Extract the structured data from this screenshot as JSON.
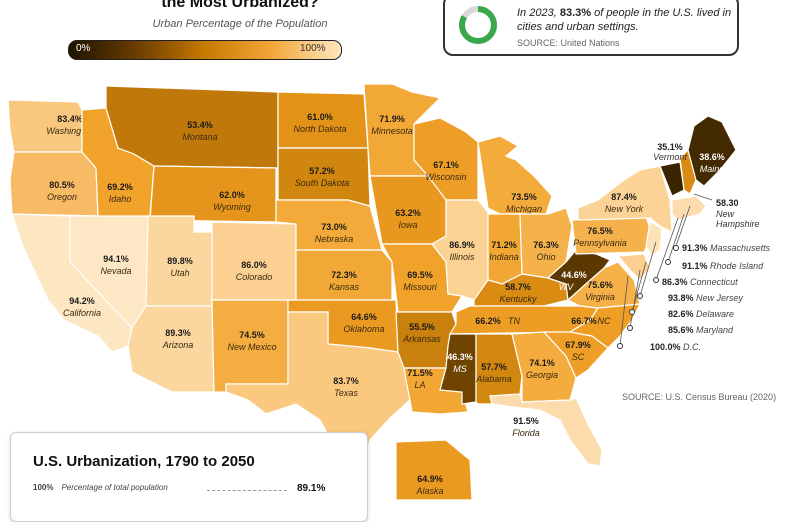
{
  "header": {
    "title": "the Most Urbanized?",
    "subtitle": "Urban Percentage of the Population",
    "legend_min": "0%",
    "legend_max": "100%"
  },
  "info": {
    "text_pre": "In 2023, ",
    "highlight": "83.3%",
    "text_post": " of people in the U.S. lived in cities and urban settings.",
    "source": "SOURCE: United Nations",
    "ring_color": "#3aa74a"
  },
  "states": [
    {
      "name": "Washington",
      "value": "83.4%",
      "fill": "#fac77e",
      "dark": false
    },
    {
      "name": "Oregon",
      "value": "80.5%",
      "fill": "#f7bb65",
      "dark": false
    },
    {
      "name": "California",
      "value": "94.2%",
      "fill": "#fde6c2",
      "dark": false
    },
    {
      "name": "Nevada",
      "value": "94.1%",
      "fill": "#fde7c4",
      "dark": false
    },
    {
      "name": "Idaho",
      "value": "69.2%",
      "fill": "#f0a22a",
      "dark": false
    },
    {
      "name": "Montana",
      "value": "53.4%",
      "fill": "#c0780a",
      "dark": false
    },
    {
      "name": "Wyoming",
      "value": "62.0%",
      "fill": "#e6951c",
      "dark": false
    },
    {
      "name": "Utah",
      "value": "89.8%",
      "fill": "#fbd7a0",
      "dark": false
    },
    {
      "name": "Colorado",
      "value": "86.0%",
      "fill": "#fbd092",
      "dark": false
    },
    {
      "name": "Arizona",
      "value": "89.3%",
      "fill": "#fbd69e",
      "dark": false
    },
    {
      "name": "New Mexico",
      "value": "74.5%",
      "fill": "#f4ad40",
      "dark": false
    },
    {
      "name": "North Dakota",
      "value": "61.0%",
      "fill": "#e39218",
      "dark": false
    },
    {
      "name": "South Dakota",
      "value": "57.2%",
      "fill": "#d1860f",
      "dark": false
    },
    {
      "name": "Nebraska",
      "value": "73.0%",
      "fill": "#f3aa3a",
      "dark": false
    },
    {
      "name": "Kansas",
      "value": "72.3%",
      "fill": "#f2a837",
      "dark": false
    },
    {
      "name": "Oklahoma",
      "value": "64.6%",
      "fill": "#ea9a20",
      "dark": false
    },
    {
      "name": "Texas",
      "value": "83.7%",
      "fill": "#fac97f",
      "dark": false
    },
    {
      "name": "Minnesota",
      "value": "71.9%",
      "fill": "#f2a836",
      "dark": false
    },
    {
      "name": "Iowa",
      "value": "63.2%",
      "fill": "#e8981e",
      "dark": false
    },
    {
      "name": "Missouri",
      "value": "69.5%",
      "fill": "#f0a22a",
      "dark": false
    },
    {
      "name": "Arkansas",
      "value": "55.5%",
      "fill": "#c9800d",
      "dark": false
    },
    {
      "name": "Louisiana",
      "value": "71.5%",
      "fill": "#f2a735",
      "dark": false,
      "abbr": "LA"
    },
    {
      "name": "Wisconsin",
      "value": "67.1%",
      "fill": "#ee9e26",
      "dark": false
    },
    {
      "name": "Illinois",
      "value": "86.9%",
      "fill": "#fbd294",
      "dark": false
    },
    {
      "name": "Michigan",
      "value": "73.5%",
      "fill": "#f3ab3c",
      "dark": false
    },
    {
      "name": "Indiana",
      "value": "71.2%",
      "fill": "#f2a734",
      "dark": false
    },
    {
      "name": "Ohio",
      "value": "76.3%",
      "fill": "#f5b14a",
      "dark": false
    },
    {
      "name": "Kentucky",
      "value": "58.7%",
      "fill": "#d98b12",
      "dark": false
    },
    {
      "name": "Tennessee",
      "value": "66.2%",
      "fill": "#ed9c24",
      "dark": false,
      "abbr": "TN"
    },
    {
      "name": "Mississippi",
      "value": "46.3%",
      "fill": "#6e4400",
      "dark": true,
      "abbr": "MS"
    },
    {
      "name": "Alabama",
      "value": "57.7%",
      "fill": "#d2870f",
      "dark": false
    },
    {
      "name": "Georgia",
      "value": "74.1%",
      "fill": "#f4ac3e",
      "dark": false
    },
    {
      "name": "Florida",
      "value": "91.5%",
      "fill": "#fcdcac",
      "dark": false
    },
    {
      "name": "South Carolina",
      "value": "67.9%",
      "fill": "#ef9f28",
      "dark": false,
      "abbr": "SC"
    },
    {
      "name": "North Carolina",
      "value": "66.7%",
      "fill": "#ee9d25",
      "dark": false,
      "abbr": "NC"
    },
    {
      "name": "Virginia",
      "value": "75.6%",
      "fill": "#f5b047",
      "dark": false
    },
    {
      "name": "West Virginia",
      "value": "44.6%",
      "fill": "#5a3800",
      "dark": true,
      "abbr": "WV"
    },
    {
      "name": "Pennsylvania",
      "value": "76.5%",
      "fill": "#f5b24c",
      "dark": false
    },
    {
      "name": "New York",
      "value": "87.4%",
      "fill": "#fbd396",
      "dark": false
    },
    {
      "name": "Vermont",
      "value": "35.1%",
      "fill": "#3a2400",
      "dark": true
    },
    {
      "name": "New Hampshire",
      "value": "58.30",
      "fill": "#d98c12",
      "dark": false
    },
    {
      "name": "Maine",
      "value": "38.6%",
      "fill": "#432a00",
      "dark": true
    },
    {
      "name": "Alaska",
      "value": "64.9%",
      "fill": "#ea9a21",
      "dark": false
    }
  ],
  "ne_labels": [
    {
      "value": "91.3%",
      "name": "Massachusetts"
    },
    {
      "value": "91.1%",
      "name": "Rhode Island"
    },
    {
      "value": "86.3%",
      "name": "Connecticut"
    },
    {
      "value": "93.8%",
      "name": "New Jersey"
    },
    {
      "value": "82.6%",
      "name": "Delaware"
    },
    {
      "value": "85.6%",
      "name": "Maryland"
    },
    {
      "value": "100.0%",
      "name": "D.C."
    }
  ],
  "map_source": "SOURCE: U.S. Census Bureau (2020)",
  "timeline": {
    "title": "U.S. Urbanization, 1790 to 2050",
    "y_max_label": "100%",
    "y_caption": "Percentage of total population",
    "end_value": "89.1%"
  }
}
